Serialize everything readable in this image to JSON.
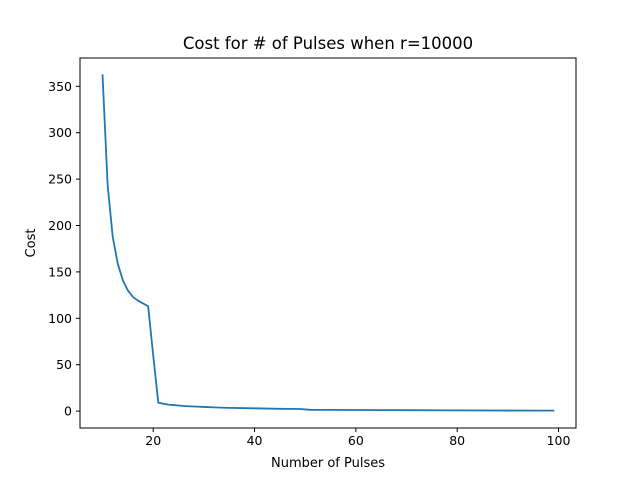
{
  "chart_data": {
    "type": "line",
    "title": "Cost for # of Pulses when r=10000",
    "xlabel": "Number of Pulses",
    "ylabel": "Cost",
    "xlim": [
      5.55,
      103.45
    ],
    "ylim": [
      -18.2,
      380.5
    ],
    "xticks": [
      20,
      40,
      60,
      80,
      100
    ],
    "xtick_labels": [
      "20",
      "40",
      "60",
      "80",
      "100"
    ],
    "yticks": [
      0,
      50,
      100,
      150,
      200,
      250,
      300,
      350
    ],
    "ytick_labels": [
      "0",
      "50",
      "100",
      "150",
      "200",
      "250",
      "300",
      "350"
    ],
    "grid": false,
    "series": [
      {
        "name": "cost",
        "color": "#1f77b4",
        "x": [
          10,
          11,
          12,
          13,
          14,
          15,
          16,
          17,
          18,
          19,
          20,
          21,
          22,
          23,
          24,
          25,
          26,
          28,
          30,
          32,
          35,
          40,
          45,
          49,
          51,
          55,
          60,
          70,
          80,
          90,
          99
        ],
        "y": [
          362,
          244,
          188,
          159,
          141,
          130,
          123,
          119,
          116,
          113,
          60,
          9,
          8,
          7,
          6.5,
          6,
          5.5,
          5,
          4.5,
          4,
          3.5,
          3,
          2.5,
          2.3,
          1.4,
          1.3,
          1.2,
          1.0,
          0.8,
          0.6,
          0.5
        ]
      }
    ]
  }
}
